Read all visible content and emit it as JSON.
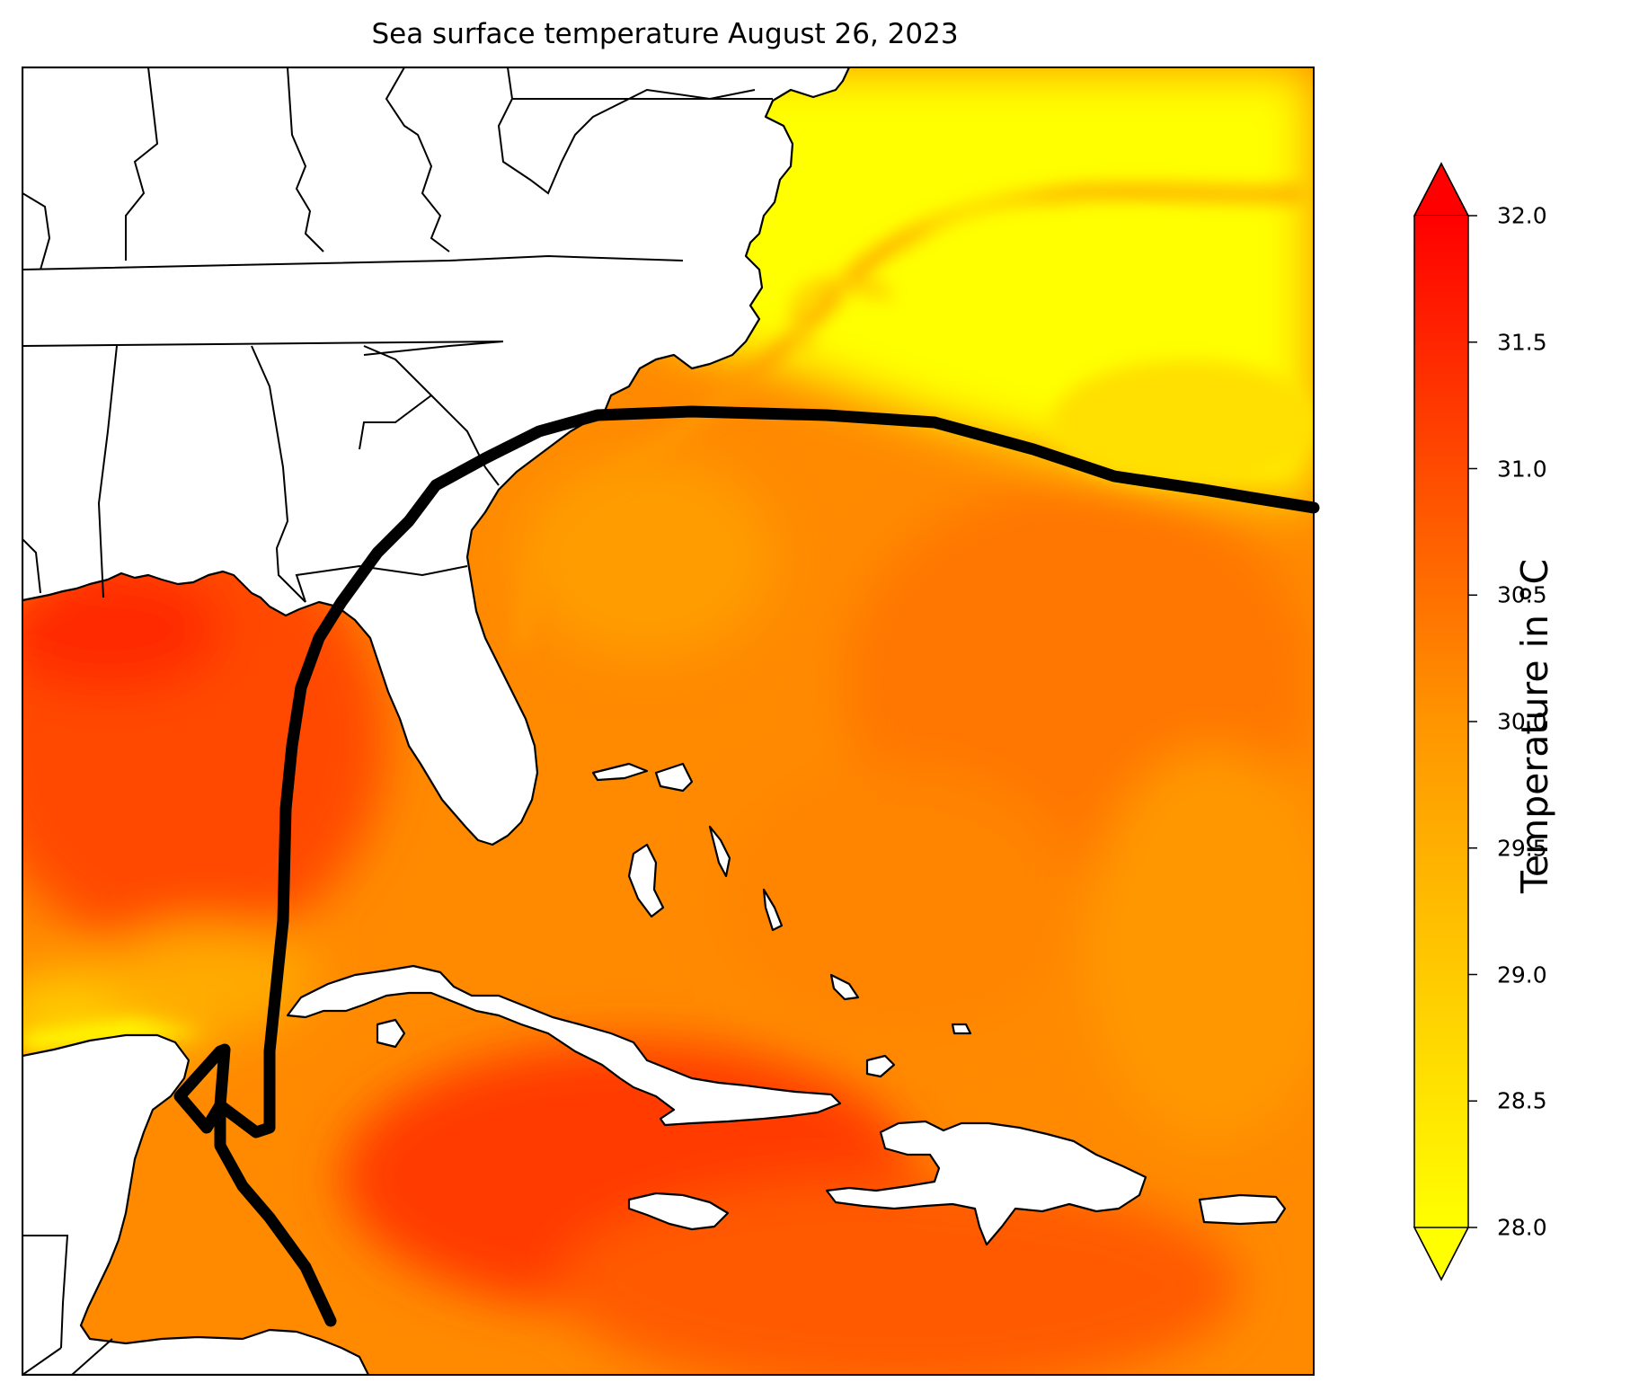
{
  "title": "Sea surface temperature August 26, 2023",
  "colorbar": {
    "label": "Temperature in °C",
    "min": 28.0,
    "max": 32.0,
    "extend": "both",
    "colormap": "autumn_r",
    "colors": {
      "low": "#ffff00",
      "mid": "#ff9500",
      "high": "#ff0000"
    },
    "ticks": [
      "28.0",
      "28.5",
      "29.0",
      "29.5",
      "30.0",
      "30.5",
      "31.0",
      "31.5",
      "32.0"
    ]
  },
  "map": {
    "region": "Southeastern United States, Gulf of Mexico, Caribbean Sea, western Atlantic",
    "land_color": "#ffffff",
    "borders_color": "#000000",
    "track_color": "#000000"
  }
}
